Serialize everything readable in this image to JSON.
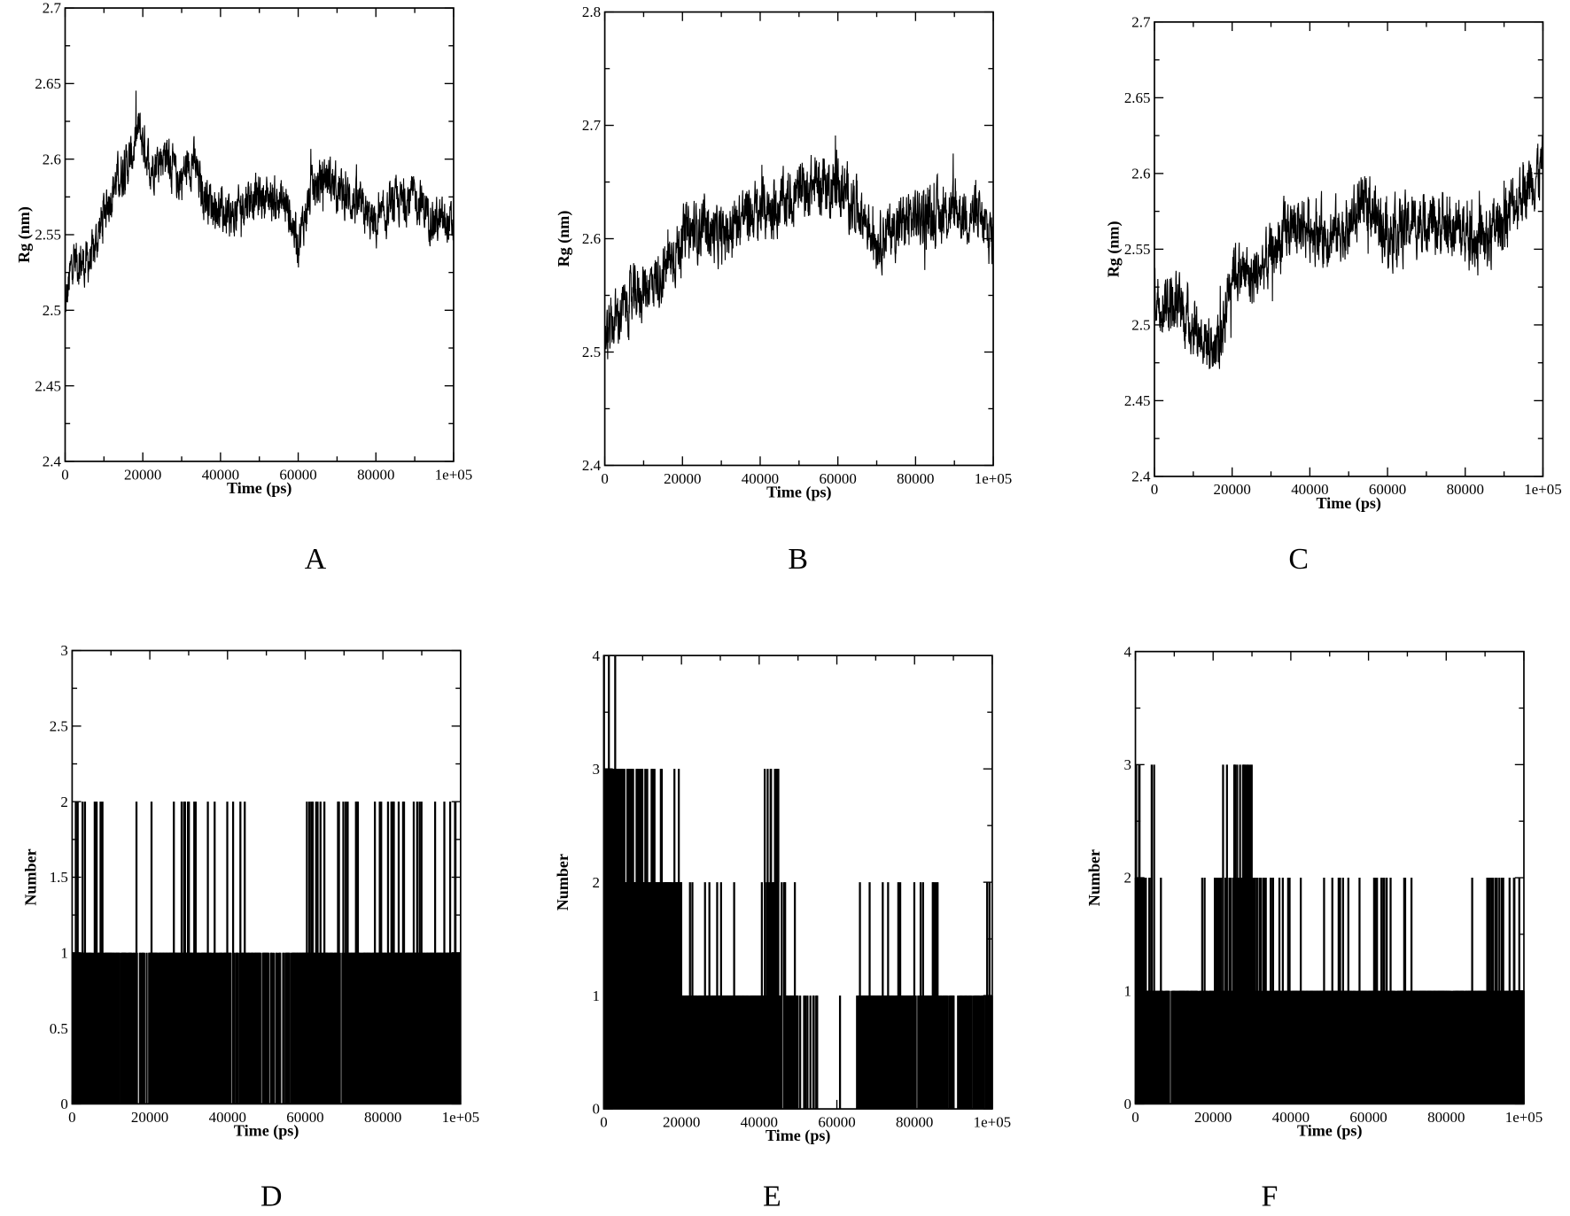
{
  "chart_data": [
    {
      "panel": "A",
      "type": "line",
      "xlabel": "Time (ps)",
      "ylabel": "Rg (nm)",
      "xlim": [
        0,
        100000
      ],
      "ylim": [
        2.4,
        2.7
      ],
      "xticks": [
        "0",
        "20000",
        "40000",
        "60000",
        "80000",
        "1e+05"
      ],
      "yticks": [
        "2.4",
        "2.45",
        "2.5",
        "2.55",
        "2.6",
        "2.65",
        "2.7"
      ],
      "x": [
        0,
        2000,
        5000,
        7000,
        10000,
        13000,
        17000,
        19000,
        22000,
        26000,
        29000,
        33000,
        35000,
        40000,
        43000,
        47000,
        52000,
        57000,
        60000,
        63000,
        67000,
        70000,
        75000,
        80000,
        85000,
        90000,
        95000,
        100000
      ],
      "y": [
        2.5,
        2.535,
        2.53,
        2.535,
        2.565,
        2.585,
        2.6,
        2.62,
        2.595,
        2.605,
        2.585,
        2.6,
        2.58,
        2.565,
        2.56,
        2.575,
        2.575,
        2.57,
        2.545,
        2.575,
        2.59,
        2.58,
        2.57,
        2.555,
        2.57,
        2.575,
        2.56,
        2.555
      ],
      "noise": 0.015
    },
    {
      "panel": "B",
      "type": "line",
      "xlabel": "Time (ps)",
      "ylabel": "Rg (nm)",
      "xlim": [
        0,
        100000
      ],
      "ylim": [
        2.4,
        2.8
      ],
      "xticks": [
        "0",
        "20000",
        "40000",
        "60000",
        "80000",
        "1e+05"
      ],
      "yticks": [
        "2.4",
        "2.5",
        "2.6",
        "2.7",
        "2.8"
      ],
      "x": [
        0,
        3000,
        8000,
        15000,
        20000,
        25000,
        30000,
        35000,
        40000,
        45000,
        50000,
        55000,
        60000,
        65000,
        70000,
        75000,
        80000,
        85000,
        90000,
        95000,
        100000
      ],
      "y": [
        2.51,
        2.53,
        2.55,
        2.57,
        2.6,
        2.61,
        2.6,
        2.62,
        2.625,
        2.63,
        2.64,
        2.65,
        2.645,
        2.63,
        2.6,
        2.61,
        2.62,
        2.62,
        2.625,
        2.62,
        2.6
      ],
      "noise": 0.025
    },
    {
      "panel": "C",
      "type": "line",
      "xlabel": "Time (ps)",
      "ylabel": "Rg (nm)",
      "xlim": [
        0,
        100000
      ],
      "ylim": [
        2.4,
        2.7
      ],
      "xticks": [
        "0",
        "20000",
        "40000",
        "60000",
        "80000",
        "1e+05"
      ],
      "yticks": [
        "2.4",
        "2.45",
        "2.5",
        "2.55",
        "2.6",
        "2.65",
        "2.7"
      ],
      "x": [
        0,
        5000,
        10000,
        15000,
        17000,
        20000,
        25000,
        30000,
        35000,
        40000,
        45000,
        50000,
        55000,
        60000,
        65000,
        70000,
        75000,
        80000,
        85000,
        90000,
        95000,
        100000
      ],
      "y": [
        2.52,
        2.515,
        2.5,
        2.485,
        2.49,
        2.54,
        2.53,
        2.545,
        2.565,
        2.565,
        2.56,
        2.565,
        2.58,
        2.56,
        2.565,
        2.57,
        2.565,
        2.56,
        2.555,
        2.57,
        2.59,
        2.605
      ],
      "noise": 0.02
    },
    {
      "panel": "D",
      "type": "bar",
      "xlabel": "Time (ps)",
      "ylabel": "Number",
      "xlim": [
        0,
        100000
      ],
      "ylim": [
        0,
        3
      ],
      "xticks": [
        "0",
        "20000",
        "40000",
        "60000",
        "80000",
        "1e+05"
      ],
      "yticks": [
        "0",
        "0.5",
        "1",
        "1.5",
        "2",
        "2.5",
        "3"
      ],
      "bin_width": 5000,
      "p_ge": [
        [
          0.85,
          0.85,
          0.6,
          0.3,
          0.85,
          0.85,
          0.85,
          0.8,
          0.75,
          0.6,
          0.5,
          0.7,
          0.85,
          0.85,
          0.85,
          0.85,
          0.85,
          0.85,
          0.8,
          0.85
        ],
        [
          0.15,
          0.05,
          0.03,
          0.08,
          0.03,
          0.1,
          0.08,
          0.08,
          0.08,
          0.03,
          0.01,
          0.01,
          0.15,
          0.12,
          0.12,
          0.15,
          0.12,
          0.15,
          0.05,
          0.08
        ],
        [
          0.06,
          0.01,
          0,
          0,
          0,
          0,
          0,
          0,
          0,
          0,
          0,
          0,
          0,
          0,
          0,
          0,
          0,
          0,
          0.01,
          0
        ]
      ]
    },
    {
      "panel": "E",
      "type": "bar",
      "xlabel": "Time (ps)",
      "ylabel": "Number",
      "xlim": [
        0,
        100000
      ],
      "ylim": [
        0,
        4
      ],
      "xticks": [
        "0",
        "20000",
        "40000",
        "60000",
        "80000",
        "1e+05"
      ],
      "yticks": [
        "0",
        "1",
        "2",
        "3",
        "4"
      ],
      "bin_width": 5000,
      "p_ge": [
        [
          0.95,
          0.95,
          0.85,
          0.85,
          0.85,
          0.85,
          0.8,
          0.8,
          0.85,
          0.7,
          0.3,
          0,
          0.05,
          0.8,
          0.8,
          0.8,
          0.8,
          0.6,
          0.5,
          0.6
        ],
        [
          0.95,
          0.9,
          0.85,
          0.85,
          0.05,
          0.08,
          0.05,
          0.08,
          0.5,
          0.1,
          0.02,
          0,
          0,
          0.08,
          0.1,
          0.1,
          0.08,
          0.05,
          0.05,
          0.03
        ],
        [
          0.9,
          0.4,
          0.2,
          0.05,
          0,
          0,
          0,
          0,
          0.4,
          0,
          0,
          0,
          0,
          0,
          0.02,
          0,
          0,
          0,
          0,
          0
        ],
        [
          0.1,
          0.05,
          0,
          0,
          0,
          0,
          0,
          0,
          0,
          0,
          0,
          0,
          0,
          0,
          0,
          0,
          0,
          0,
          0,
          0
        ]
      ]
    },
    {
      "panel": "F",
      "type": "bar",
      "xlabel": "Time (ps)",
      "ylabel": "Number",
      "xlim": [
        0,
        100000
      ],
      "ylim": [
        0,
        4
      ],
      "xticks": [
        "0",
        "20000",
        "40000",
        "60000",
        "80000",
        "1e+05"
      ],
      "yticks": [
        "0",
        "1",
        "2",
        "3",
        "4"
      ],
      "bin_width": 5000,
      "p_ge": [
        [
          0.9,
          0.8,
          0.8,
          0.7,
          0.75,
          0.8,
          0.7,
          0.8,
          0.85,
          0.85,
          0.85,
          0.85,
          0.9,
          0.9,
          0.85,
          0.85,
          0.8,
          0.85,
          0.9,
          0.9
        ],
        [
          0.5,
          0.03,
          0.05,
          0.1,
          0.5,
          0.9,
          0.4,
          0.08,
          0.1,
          0.1,
          0.05,
          0.05,
          0.15,
          0.05,
          0.05,
          0.03,
          0,
          0.15,
          0.15,
          0.1
        ],
        [
          0.4,
          0.01,
          0,
          0.02,
          0.05,
          0.5,
          0.02,
          0,
          0,
          0,
          0.02,
          0.03,
          0.02,
          0,
          0,
          0,
          0,
          0,
          0,
          0
        ],
        [
          0.02,
          0,
          0,
          0,
          0,
          0,
          0,
          0,
          0,
          0,
          0,
          0,
          0,
          0,
          0,
          0,
          0,
          0,
          0,
          0
        ]
      ]
    }
  ]
}
